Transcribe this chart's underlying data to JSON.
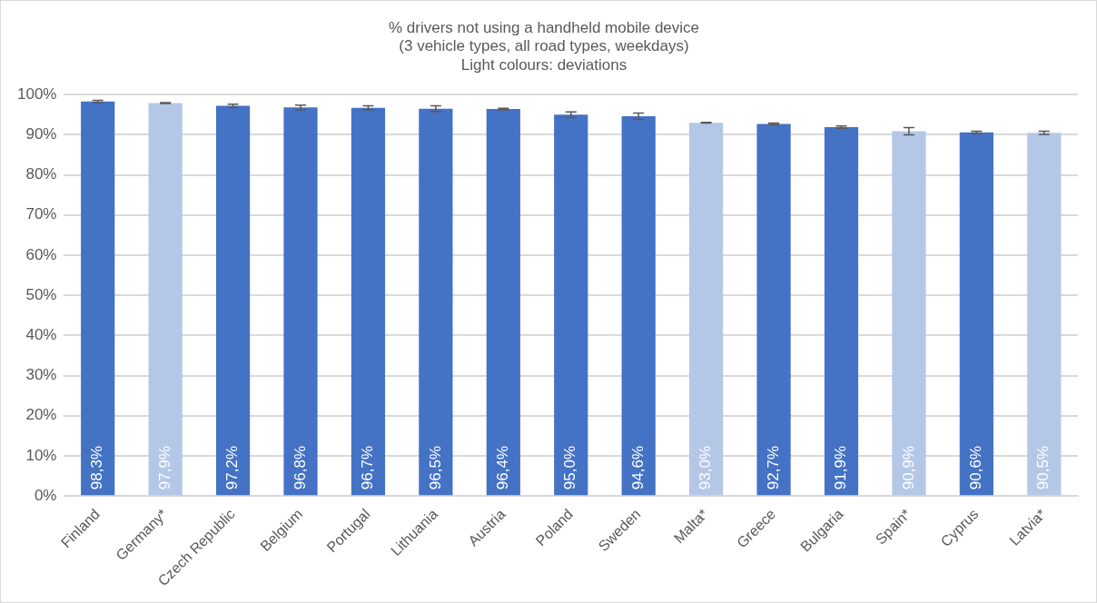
{
  "chart_data": {
    "type": "bar",
    "title": [
      "% drivers not using a handheld mobile device",
      "(3 vehicle types, all road types, weekdays)",
      "Light colours: deviations"
    ],
    "categories": [
      "Finland",
      "Germany*",
      "Czech Republic",
      "Belgium",
      "Portugal",
      "Lithuania",
      "Austria",
      "Poland",
      "Sweden",
      "Malta*",
      "Greece",
      "Bulgaria",
      "Spain*",
      "Cyprus",
      "Latvia*"
    ],
    "values": [
      98.3,
      97.9,
      97.2,
      96.8,
      96.7,
      96.5,
      96.4,
      95.0,
      94.6,
      93.0,
      92.7,
      91.9,
      90.9,
      90.6,
      90.5
    ],
    "value_labels": [
      "98,3%",
      "97,9%",
      "97,2%",
      "96,8%",
      "96,7%",
      "96,5%",
      "96,4%",
      "95,0%",
      "94,6%",
      "93,0%",
      "92,7%",
      "91,9%",
      "90,9%",
      "90,6%",
      "90,5%"
    ],
    "errors": [
      0.3,
      0.1,
      0.4,
      0.6,
      0.5,
      0.7,
      0.2,
      0.7,
      0.8,
      0.1,
      0.2,
      0.3,
      0.9,
      0.3,
      0.4
    ],
    "colors": [
      "#4472c4",
      "#b4c7e7",
      "#4472c4",
      "#4472c4",
      "#4472c4",
      "#4472c4",
      "#4472c4",
      "#4472c4",
      "#4472c4",
      "#b4c7e7",
      "#4472c4",
      "#4472c4",
      "#b4c7e7",
      "#4472c4",
      "#b4c7e7"
    ],
    "ylim": [
      0,
      100
    ],
    "yticks": [
      {
        "value": 0,
        "label": "0%"
      },
      {
        "value": 10,
        "label": "10%"
      },
      {
        "value": 20,
        "label": "20%"
      },
      {
        "value": 30,
        "label": "30%"
      },
      {
        "value": 40,
        "label": "40%"
      },
      {
        "value": 50,
        "label": "50%"
      },
      {
        "value": 60,
        "label": "60%"
      },
      {
        "value": 70,
        "label": "70%"
      },
      {
        "value": 80,
        "label": "80%"
      },
      {
        "value": 90,
        "label": "90%"
      },
      {
        "value": 100,
        "label": "100%"
      }
    ],
    "grid": "y",
    "legend": false
  }
}
